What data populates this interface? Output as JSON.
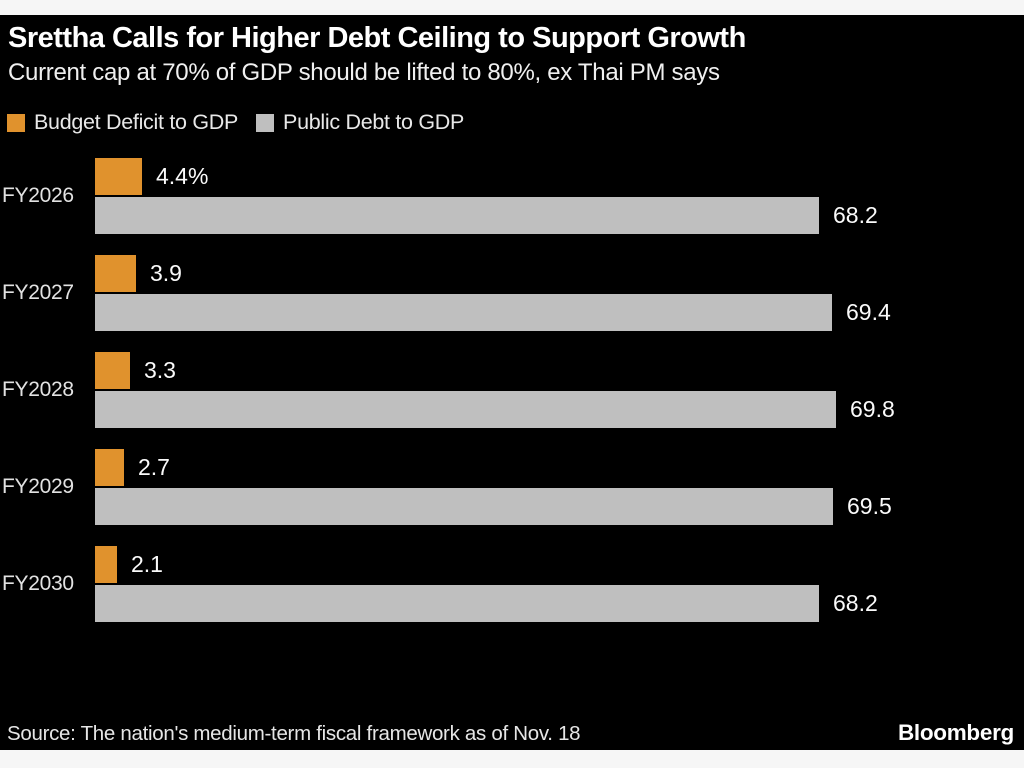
{
  "header": {
    "title": "Srettha Calls for Higher Debt Ceiling to Support Growth",
    "subtitle": "Current cap at 70% of GDP should be lifted to 80%, ex Thai PM says"
  },
  "legend": [
    {
      "label": "Budget Deficit to GDP",
      "color": "#E0922D"
    },
    {
      "label": "Public Debt to GDP",
      "color": "#BFBFBF"
    }
  ],
  "footer": {
    "source": "Source: The nation's medium-term fiscal framework as of Nov. 18",
    "brand": "Bloomberg"
  },
  "colors": {
    "background": "#000000",
    "frame_strip": "#f6f6f6",
    "deficit_bar": "#E0922D",
    "debt_bar": "#BFBFBF",
    "text": "#ffffff"
  },
  "chart_data": {
    "type": "bar",
    "orientation": "horizontal",
    "title": "Srettha Calls for Higher Debt Ceiling to Support Growth",
    "subtitle": "Current cap at 70% of GDP should be lifted to 80%, ex Thai PM says",
    "categories": [
      "FY2026",
      "FY2027",
      "FY2028",
      "FY2029",
      "FY2030"
    ],
    "series": [
      {
        "name": "Budget Deficit to GDP",
        "color": "#E0922D",
        "values": [
          4.4,
          3.9,
          3.3,
          2.7,
          2.1
        ],
        "labels": [
          "4.4%",
          "3.9",
          "3.3",
          "2.7",
          "2.1"
        ]
      },
      {
        "name": "Public Debt to GDP",
        "color": "#BFBFBF",
        "values": [
          68.2,
          69.4,
          69.8,
          69.5,
          68.2
        ],
        "labels": [
          "68.2",
          "69.4",
          "69.8",
          "69.5",
          "68.2"
        ]
      }
    ],
    "xlim": [
      0,
      87.5
    ],
    "grid": false,
    "legend_position": "top-left",
    "value_labels": "outside-right",
    "unit": "% of GDP"
  }
}
